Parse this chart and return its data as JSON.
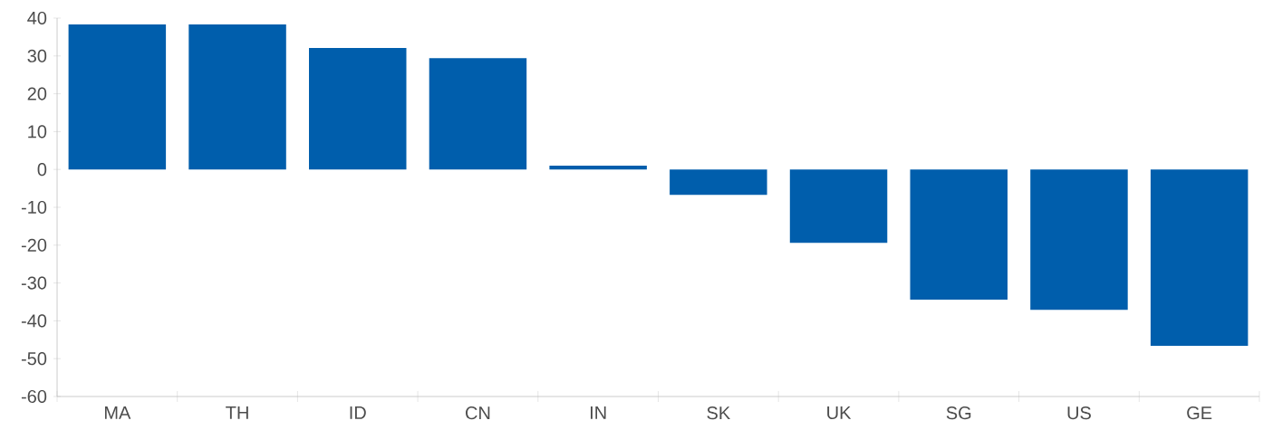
{
  "chart_data": {
    "type": "bar",
    "categories": [
      "MA",
      "TH",
      "ID",
      "CN",
      "IN",
      "SK",
      "UK",
      "SG",
      "US",
      "GE"
    ],
    "values": [
      38.3,
      38.3,
      32.1,
      29.4,
      1,
      -6.7,
      -19.4,
      -34.4,
      -37.1,
      -46.6
    ],
    "color": "#005eac",
    "ylim": [
      -60,
      40
    ],
    "yticks": [
      -60,
      -50,
      -40,
      -30,
      -20,
      -10,
      0,
      10,
      20,
      30,
      40
    ],
    "grid": false
  }
}
